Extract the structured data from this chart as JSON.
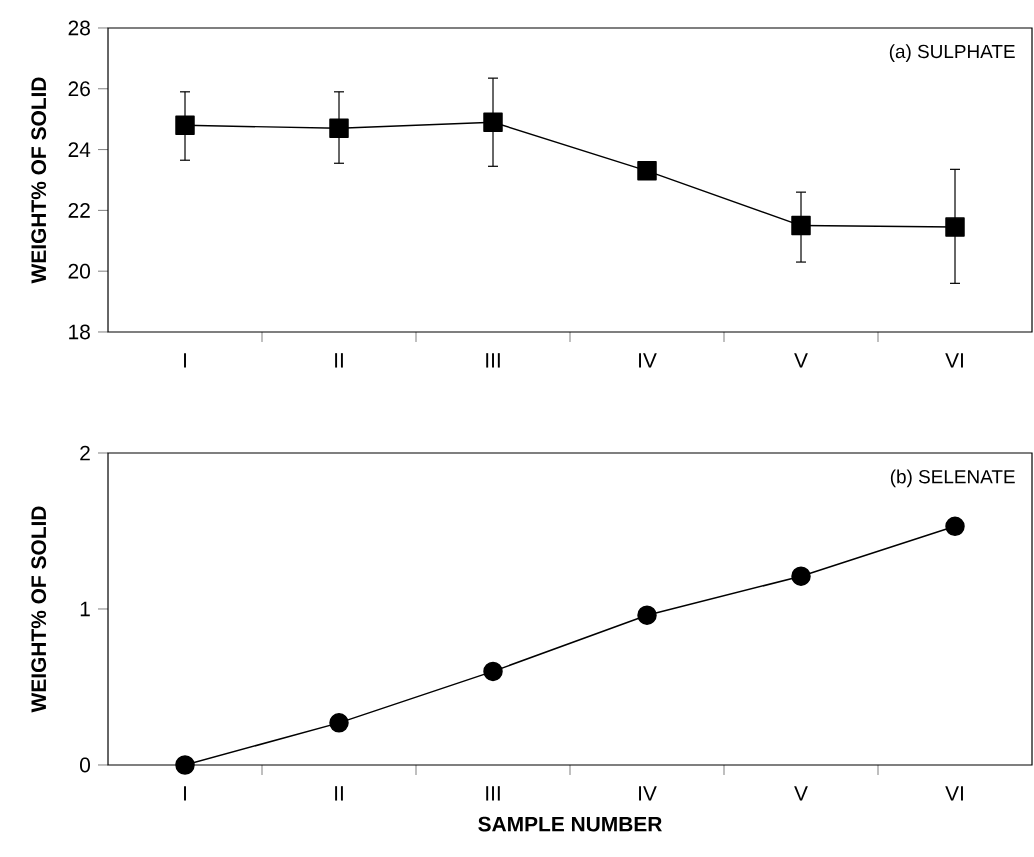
{
  "chart_data": [
    {
      "type": "line",
      "title": "(a) SULPHATE",
      "ylabel": "WEIGHT% OF SOLID",
      "categories": [
        "I",
        "II",
        "III",
        "IV",
        "V",
        "VI"
      ],
      "values": [
        24.8,
        24.7,
        24.9,
        23.3,
        21.5,
        21.45
      ],
      "errors": [
        [
          23.65,
          25.9
        ],
        [
          23.55,
          25.9
        ],
        [
          23.45,
          26.35
        ],
        null,
        [
          20.3,
          22.6
        ],
        [
          19.6,
          23.35
        ]
      ],
      "color": "#000000",
      "marker": "square",
      "ylim": [
        18,
        28
      ],
      "yticks": [
        18,
        20,
        22,
        24,
        26,
        28
      ],
      "grid": false
    },
    {
      "type": "line",
      "title": "(b) SELENATE",
      "xlabel": "SAMPLE NUMBER",
      "ylabel": "WEIGHT% OF SOLID",
      "categories": [
        "I",
        "II",
        "III",
        "IV",
        "V",
        "VI"
      ],
      "values": [
        0,
        0.27,
        0.6,
        0.96,
        1.21,
        1.53
      ],
      "color": "#000000",
      "marker": "circle",
      "ylim": [
        0,
        2
      ],
      "yticks": [
        0,
        1,
        2
      ],
      "grid": false
    }
  ]
}
